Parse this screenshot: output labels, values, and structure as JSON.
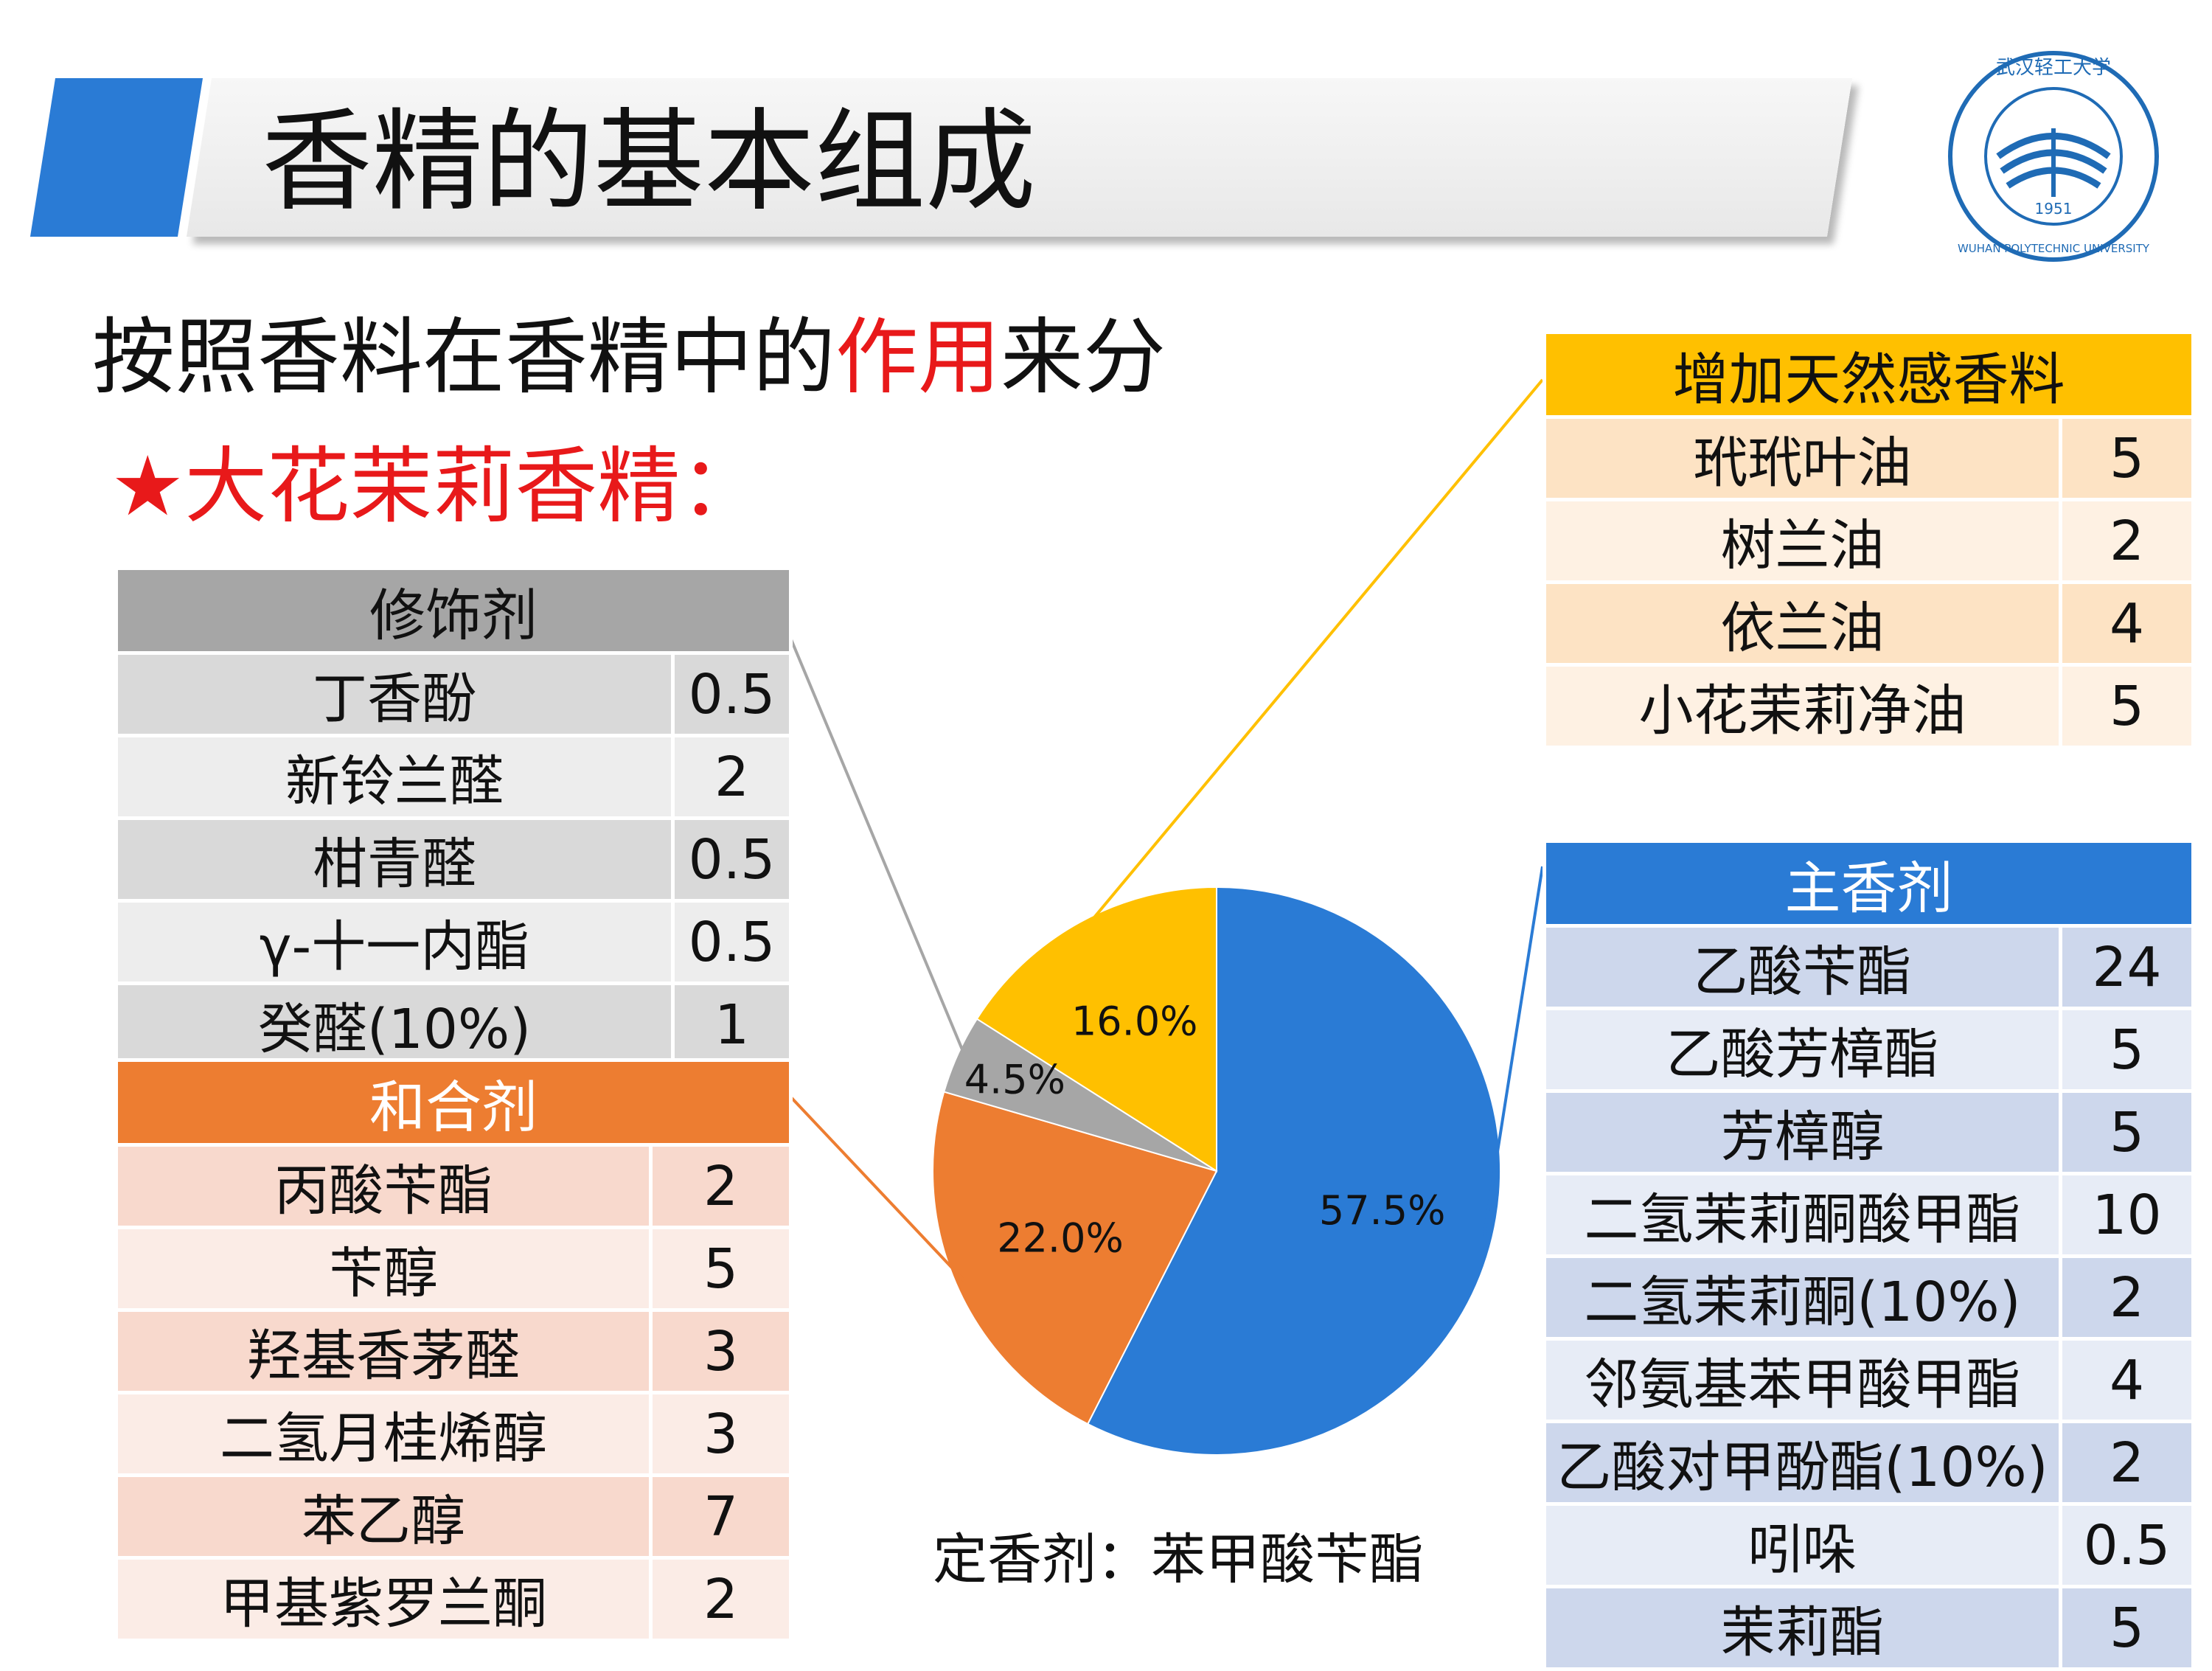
{
  "title": "香精的基本组成",
  "subtitle_prefix": "按照香料在香精中的",
  "subtitle_highlight": "作用",
  "subtitle_suffix": "来分",
  "heading": "★大花茉莉香精：",
  "logo": {
    "text_cn": "武汉轻工大学",
    "text_en": "WUHAN POLYTECHNIC UNIVERSITY",
    "year": "1951",
    "color": "#1f6bb5"
  },
  "tables": {
    "modifier": {
      "header": "修饰剂",
      "color": "#a6a6a6",
      "rows": [
        {
          "name": "丁香酚",
          "value": "0.5"
        },
        {
          "name": "新铃兰醛",
          "value": "2"
        },
        {
          "name": "柑青醛",
          "value": "0.5"
        },
        {
          "name": "γ-十一内酯",
          "value": "0.5"
        },
        {
          "name": "癸醛(10%)",
          "value": "1"
        }
      ]
    },
    "blender": {
      "header": "和合剂",
      "color": "#ed7d31",
      "rows": [
        {
          "name": "丙酸苄酯",
          "value": "2"
        },
        {
          "name": "苄醇",
          "value": "5"
        },
        {
          "name": "羟基香茅醛",
          "value": "3"
        },
        {
          "name": "二氢月桂烯醇",
          "value": "3"
        },
        {
          "name": "苯乙醇",
          "value": "7"
        },
        {
          "name": "甲基紫罗兰酮",
          "value": "2"
        }
      ]
    },
    "natural": {
      "header": "增加天然感香料",
      "color": "#ffc000",
      "rows": [
        {
          "name": "玳玳叶油",
          "value": "5"
        },
        {
          "name": "树兰油",
          "value": "2"
        },
        {
          "name": "依兰油",
          "value": "4"
        },
        {
          "name": "小花茉莉净油",
          "value": "5"
        }
      ]
    },
    "main": {
      "header": "主香剂",
      "color": "#2a7bd5",
      "rows": [
        {
          "name": "乙酸苄酯",
          "value": "24"
        },
        {
          "name": "乙酸芳樟酯",
          "value": "5"
        },
        {
          "name": "芳樟醇",
          "value": "5"
        },
        {
          "name": "二氢茉莉酮酸甲酯",
          "value": "10"
        },
        {
          "name": "二氢茉莉酮(10%)",
          "value": "2"
        },
        {
          "name": "邻氨基苯甲酸甲酯",
          "value": "4"
        },
        {
          "name": "乙酸对甲酚酯(10%)",
          "value": "2"
        },
        {
          "name": "吲哚",
          "value": "0.5"
        },
        {
          "name": "茉莉酯",
          "value": "5"
        }
      ]
    }
  },
  "fixative": "定香剂：苯甲酸苄酯",
  "chart_data": {
    "type": "pie",
    "title": "",
    "slices": [
      {
        "label": "57.5%",
        "value": 57.5,
        "color": "#2a7bd5",
        "group": "主香剂"
      },
      {
        "label": "22.0%",
        "value": 22.0,
        "color": "#ed7d31",
        "group": "和合剂"
      },
      {
        "label": "4.5%",
        "value": 4.5,
        "color": "#a6a6a6",
        "group": "修饰剂"
      },
      {
        "label": "16.0%",
        "value": 16.0,
        "color": "#ffc000",
        "group": "增加天然感香料"
      }
    ],
    "start_angle_deg": 0,
    "direction": "clockwise"
  }
}
